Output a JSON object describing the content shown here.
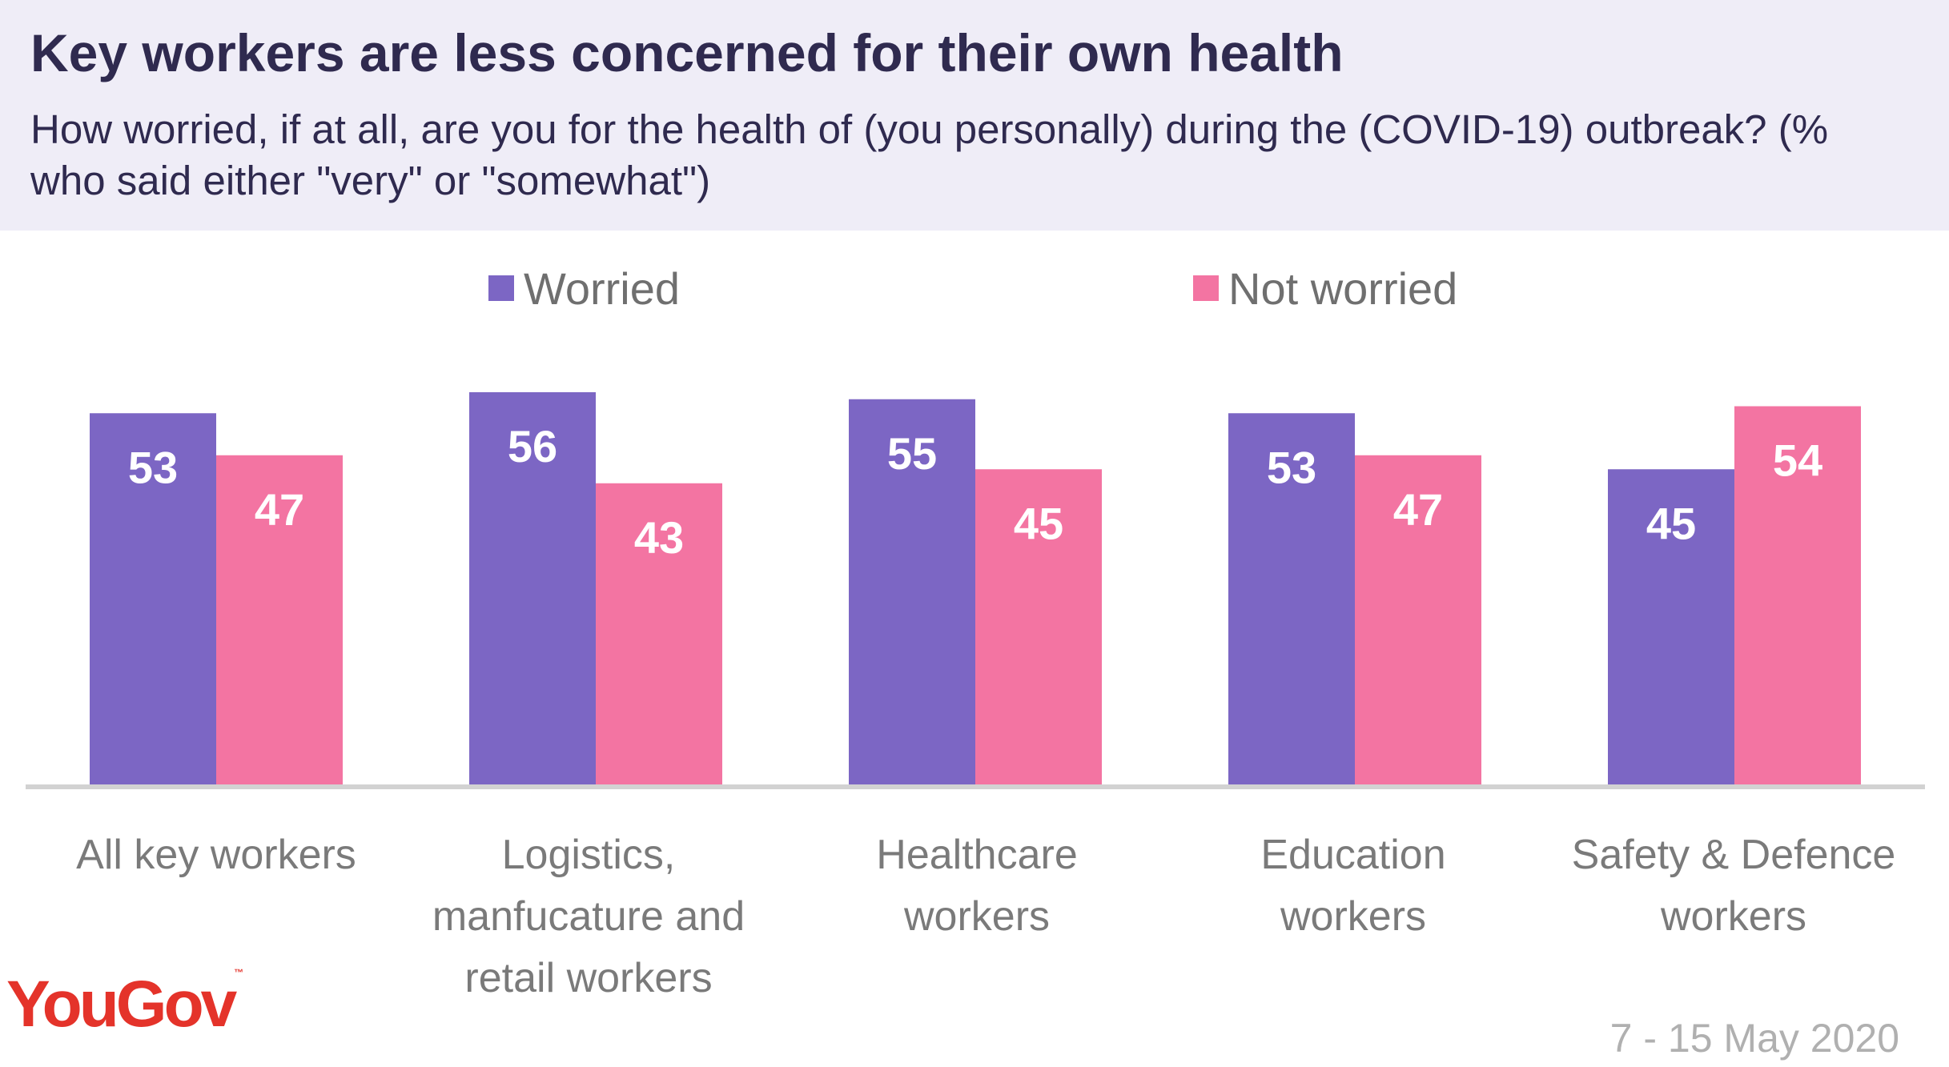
{
  "header": {
    "title": "Key workers are less concerned for their own health",
    "subtitle": "How worried, if at all, are you for the health of (you personally) during the (COVID-19) outbreak? (% who said either \"very\" or \"somewhat\")"
  },
  "chart_data": {
    "type": "bar",
    "categories": [
      "All key workers",
      "Logistics, manfucature and retail workers",
      "Healthcare workers",
      "Education workers",
      "Safety & Defence workers"
    ],
    "series": [
      {
        "name": "Worried",
        "color": "#7c66c4",
        "values": [
          53,
          56,
          55,
          53,
          45
        ]
      },
      {
        "name": "Not worried",
        "color": "#f374a2",
        "values": [
          47,
          43,
          45,
          47,
          54
        ]
      }
    ],
    "ylim": [
      0,
      60
    ],
    "grid": false,
    "legend": "top"
  },
  "footer": {
    "brand": "YouGov",
    "date": "7 - 15 May 2020"
  }
}
